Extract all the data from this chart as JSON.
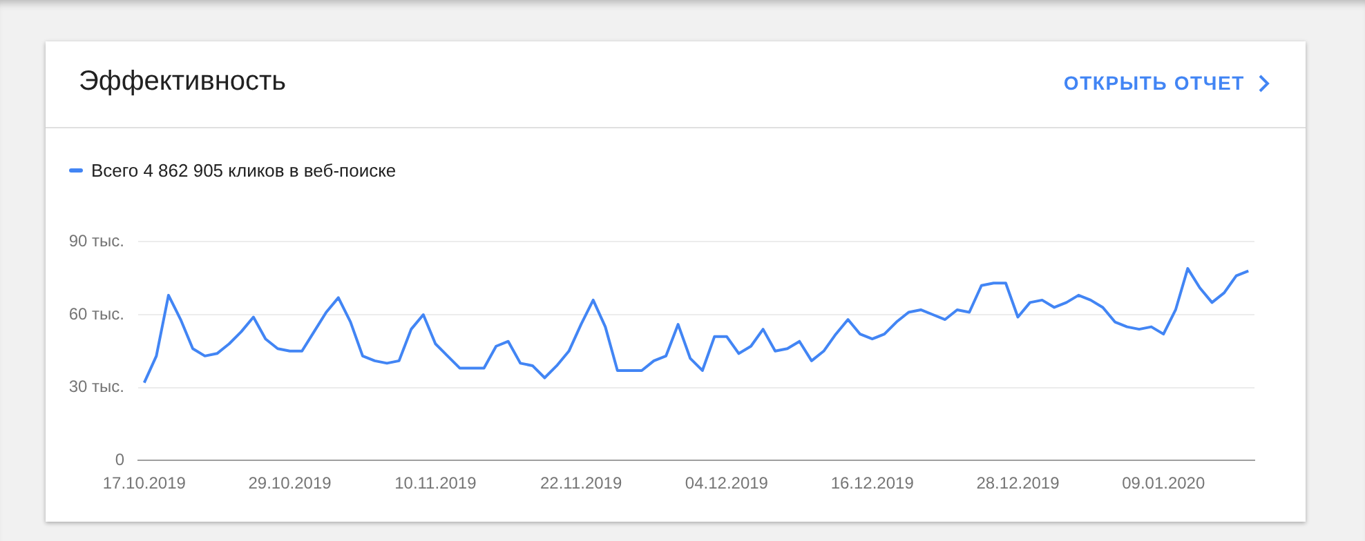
{
  "chart_data": {
    "type": "line",
    "title": "Эффективность",
    "annotations": [
      "ОТКРЫТЬ ОТЧЕТ"
    ],
    "categories": [
      "17.10.2019",
      null,
      null,
      null,
      null,
      null,
      null,
      null,
      null,
      null,
      null,
      null,
      "29.10.2019",
      null,
      null,
      null,
      null,
      null,
      null,
      null,
      null,
      null,
      null,
      null,
      "10.11.2019",
      null,
      null,
      null,
      null,
      null,
      null,
      null,
      null,
      null,
      null,
      null,
      "22.11.2019",
      null,
      null,
      null,
      null,
      null,
      null,
      null,
      null,
      null,
      null,
      null,
      "04.12.2019",
      null,
      null,
      null,
      null,
      null,
      null,
      null,
      null,
      null,
      null,
      null,
      "16.12.2019",
      null,
      null,
      null,
      null,
      null,
      null,
      null,
      null,
      null,
      null,
      null,
      "28.12.2019",
      null,
      null,
      null,
      null,
      null,
      null,
      null,
      null,
      null,
      null,
      null,
      "09.01.2020",
      null,
      null,
      null,
      null,
      null,
      null,
      null
    ],
    "series": [
      {
        "name": "Всего 4 862 905 кликов в веб-поиске",
        "color": "#4285f4",
        "values": [
          32,
          43,
          68,
          58,
          46,
          43,
          44,
          48,
          53,
          59,
          50,
          46,
          45,
          45,
          53,
          61,
          67,
          57,
          43,
          41,
          40,
          41,
          54,
          60,
          48,
          43,
          38,
          38,
          38,
          47,
          49,
          40,
          39,
          34,
          39,
          45,
          56,
          66,
          55,
          37,
          37,
          37,
          41,
          43,
          56,
          42,
          37,
          51,
          51,
          44,
          47,
          54,
          45,
          46,
          49,
          41,
          45,
          52,
          58,
          52,
          50,
          52,
          57,
          61,
          62,
          60,
          58,
          62,
          61,
          72,
          73,
          73,
          59,
          65,
          66,
          63,
          65,
          68,
          66,
          63,
          57,
          55,
          54,
          55,
          52,
          62,
          79,
          71,
          65,
          69,
          76,
          78
        ]
      }
    ],
    "ylim": [
      0,
      90
    ],
    "yticks": [
      0,
      {
        "value": 30,
        "label": "30 тыс."
      },
      {
        "value": 60,
        "label": "60 тыс."
      },
      {
        "value": 90,
        "label": "90 тыс."
      }
    ],
    "grid": "y",
    "legend": "top left",
    "marker": "none",
    "line_style": "solid"
  }
}
